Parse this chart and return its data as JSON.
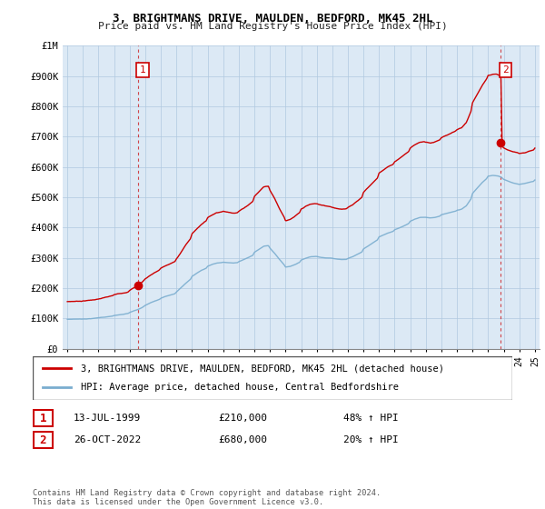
{
  "title": "3, BRIGHTMANS DRIVE, MAULDEN, BEDFORD, MK45 2HL",
  "subtitle": "Price paid vs. HM Land Registry's House Price Index (HPI)",
  "legend_line1": "3, BRIGHTMANS DRIVE, MAULDEN, BEDFORD, MK45 2HL (detached house)",
  "legend_line2": "HPI: Average price, detached house, Central Bedfordshire",
  "sale1_date": "13-JUL-1999",
  "sale1_price": "£210,000",
  "sale1_hpi": "48% ↑ HPI",
  "sale2_date": "26-OCT-2022",
  "sale2_price": "£680,000",
  "sale2_hpi": "20% ↑ HPI",
  "footer": "Contains HM Land Registry data © Crown copyright and database right 2024.\nThis data is licensed under the Open Government Licence v3.0.",
  "red_color": "#cc0000",
  "blue_color": "#7aadcf",
  "marker_fill": "#cc0000",
  "ylim": [
    0,
    1000000
  ],
  "yticks": [
    0,
    100000,
    200000,
    300000,
    400000,
    500000,
    600000,
    700000,
    800000,
    900000,
    1000000
  ],
  "ytick_labels": [
    "£0",
    "£100K",
    "£200K",
    "£300K",
    "£400K",
    "£500K",
    "£600K",
    "£700K",
    "£800K",
    "£900K",
    "£1M"
  ],
  "sale1_year": 1999.54,
  "sale1_value": 210000,
  "sale2_year": 2022.82,
  "sale2_value": 680000,
  "chart_bg": "#dce9f5",
  "grid_color": "#b0c8e0",
  "fig_bg": "#ffffff"
}
